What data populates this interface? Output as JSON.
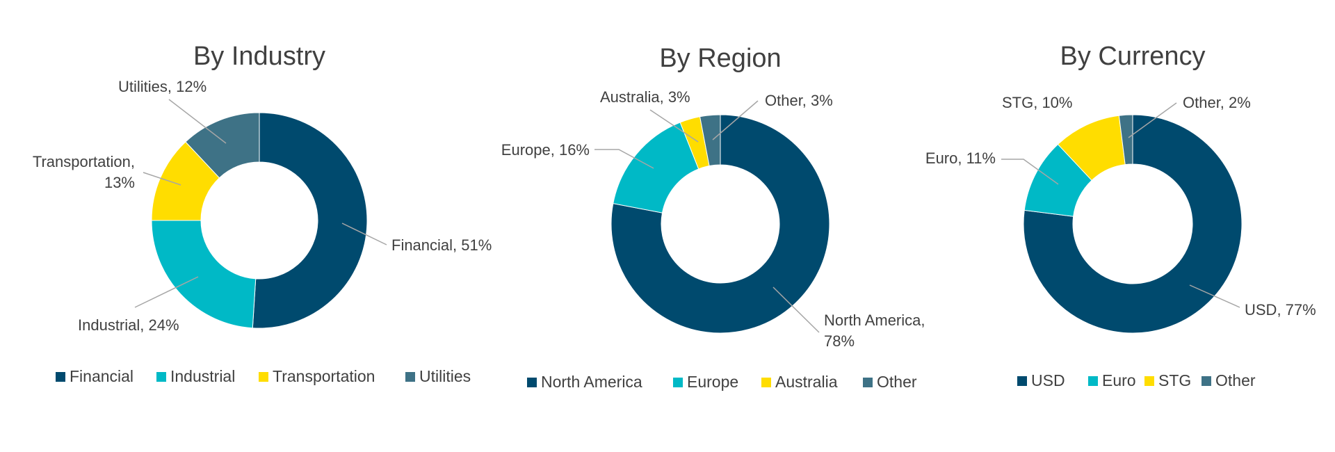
{
  "chart_data": [
    {
      "type": "pie",
      "title": "By Industry",
      "categories": [
        "Financial",
        "Industrial",
        "Transportation",
        "Utilities"
      ],
      "values": [
        51,
        24,
        13,
        12
      ],
      "colors": [
        "#004a6e",
        "#00b9c6",
        "#ffdd00",
        "#3e7286"
      ],
      "labels": [
        [
          "Financial, 51%"
        ],
        [
          "Industrial, 24%"
        ],
        [
          "Transportation,",
          "13%"
        ],
        [
          "Utilities, 12%"
        ]
      ],
      "legend": "bottom"
    },
    {
      "type": "pie",
      "title": "By Region",
      "categories": [
        "North America",
        "Europe",
        "Australia",
        "Other"
      ],
      "values": [
        78,
        16,
        3,
        3
      ],
      "colors": [
        "#004a6e",
        "#00b9c6",
        "#ffdd00",
        "#3e7286"
      ],
      "labels": [
        [
          "North America,",
          "78%"
        ],
        [
          "Europe, 16%"
        ],
        [
          "Australia, 3%"
        ],
        [
          "Other, 3%"
        ]
      ],
      "legend": "bottom"
    },
    {
      "type": "pie",
      "title": "By Currency",
      "categories": [
        "USD",
        "Euro",
        "STG",
        "Other"
      ],
      "values": [
        77,
        11,
        10,
        2
      ],
      "colors": [
        "#004a6e",
        "#00b9c6",
        "#ffdd00",
        "#3e7286"
      ],
      "labels": [
        [
          "USD, 77%"
        ],
        [
          "Euro, 11%"
        ],
        [
          "STG, 10%"
        ],
        [
          "Other, 2%"
        ]
      ],
      "legend": "bottom"
    }
  ]
}
